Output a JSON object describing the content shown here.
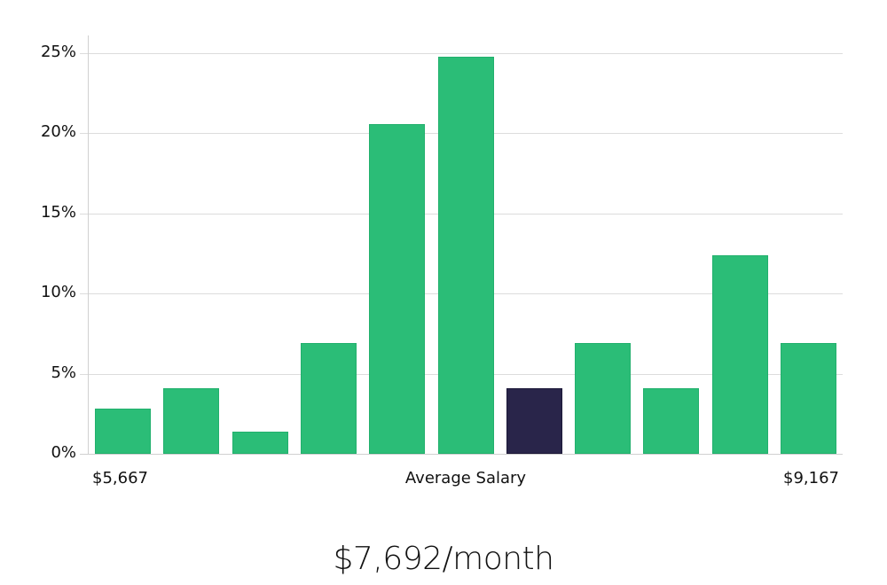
{
  "chart_data": {
    "type": "bar",
    "title": "",
    "xlabel": "Average Salary",
    "ylabel": "",
    "x_range_labels": {
      "min": "$5,667",
      "max": "$9,167"
    },
    "categories": [
      "bin1",
      "bin2",
      "bin3",
      "bin4",
      "bin5",
      "bin6",
      "bin7",
      "bin8",
      "bin9",
      "bin10",
      "bin11"
    ],
    "values": [
      2.8,
      4.1,
      1.4,
      6.9,
      20.6,
      24.8,
      4.1,
      6.9,
      4.1,
      12.4,
      6.9
    ],
    "highlight_index": 6,
    "ylim": [
      0,
      26
    ],
    "yticks": [
      "0%",
      "5%",
      "10%",
      "15%",
      "20%",
      "25%"
    ],
    "ytick_values": [
      0,
      5,
      10,
      15,
      20,
      25
    ],
    "grid": true,
    "colors": {
      "bar": "#2bbd77",
      "highlight": "#29254a",
      "grid": "#dcdcdc"
    }
  },
  "axis": {
    "min_label": "$5,667",
    "center_label": "Average Salary",
    "max_label": "$9,167"
  },
  "summary": {
    "salary": "$7,692/month"
  }
}
